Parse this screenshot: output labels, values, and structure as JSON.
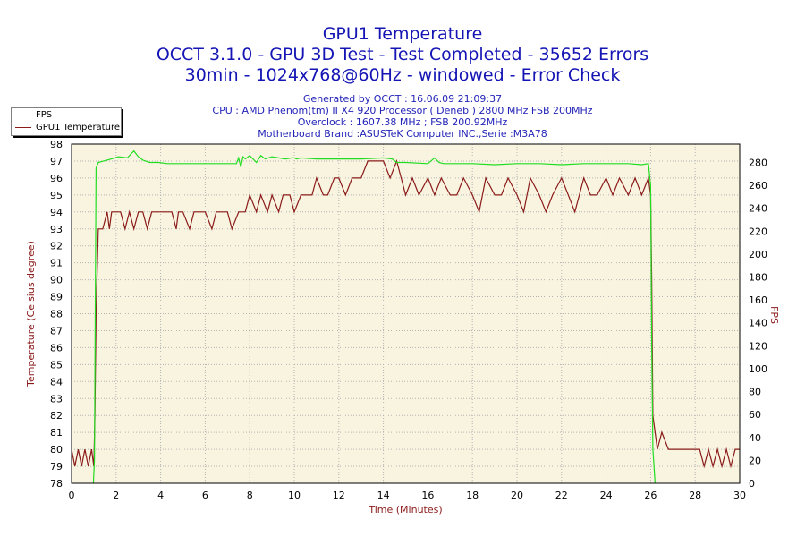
{
  "title_lines": [
    "GPU1 Temperature",
    "OCCT 3.1.0 - GPU 3D Test - Test Completed - 35652 Errors",
    "30min - 1024x768@60Hz - windowed - Error Check"
  ],
  "info_lines": [
    "Generated by OCCT : 16.06.09 21:09:37",
    "CPU : AMD Phenom(tm) II X4 920 Processor ( Deneb ) 2800 MHz FSB 200MHz",
    "Overclock : 1607.38 MHz ; FSB 200.92MHz",
    "Motherboard Brand :ASUSTeK Computer INC.,Serie :M3A78"
  ],
  "colors": {
    "background": "#ffffff",
    "plot_background": "#f8f4e0",
    "grid": "#b4b4b4",
    "title": "#1515b5",
    "axis_label": "#8b1a1a",
    "fps_line": "#22dd22",
    "temp_line": "#8b1a1a"
  },
  "chart_data": {
    "type": "line",
    "title": "GPU1 Temperature",
    "xlabel": "Time (Minutes)",
    "ylabel_left": "Temperature (Celsius degree)",
    "ylabel_right": "FPS",
    "xlim": [
      0,
      30
    ],
    "ylim_left": [
      78,
      98
    ],
    "ylim_right": [
      0,
      296
    ],
    "x_ticks": [
      "0",
      "2",
      "4",
      "6",
      "8",
      "10",
      "12",
      "14",
      "16",
      "18",
      "20",
      "22",
      "24",
      "26",
      "28",
      "30"
    ],
    "y_left_ticks": [
      "78",
      "79",
      "80",
      "81",
      "82",
      "83",
      "84",
      "85",
      "86",
      "87",
      "88",
      "89",
      "90",
      "91",
      "92",
      "93",
      "94",
      "95",
      "96",
      "97",
      "98"
    ],
    "y_right_ticks": [
      "0",
      "20",
      "40",
      "60",
      "80",
      "100",
      "120",
      "140",
      "160",
      "180",
      "200",
      "220",
      "240",
      "260",
      "280"
    ],
    "grid": true,
    "legend_position": "top-left",
    "series": [
      {
        "name": "FPS",
        "axis": "right",
        "color": "#22dd22",
        "x": [
          0.98,
          1.03,
          1.1,
          1.2,
          1.4,
          1.8,
          2.1,
          2.5,
          2.8,
          3.0,
          3.2,
          3.5,
          3.9,
          4.3,
          5.0,
          6.0,
          7.0,
          7.4,
          7.5,
          7.6,
          7.7,
          7.8,
          8.0,
          8.3,
          8.5,
          8.7,
          9.0,
          9.3,
          9.6,
          9.9,
          10.0,
          10.1,
          10.3,
          11.0,
          12.0,
          13.0,
          14.0,
          14.4,
          14.6,
          15.0,
          16.0,
          16.3,
          16.5,
          16.7,
          17.0,
          18.0,
          19.0,
          20.0,
          21.0,
          22.0,
          23.0,
          24.0,
          25.0,
          25.6,
          25.9,
          26.0,
          26.05,
          26.1,
          26.2
        ],
        "y": [
          0,
          20,
          275,
          280,
          281,
          283,
          285,
          284,
          290,
          285,
          282,
          280,
          280,
          279,
          279,
          279,
          279,
          279,
          284,
          276,
          285,
          283,
          286,
          280,
          286,
          283,
          285,
          284,
          283,
          284,
          284,
          283,
          284,
          283,
          283,
          283,
          284,
          283,
          280,
          280,
          279,
          284,
          280,
          279,
          279,
          279,
          278,
          279,
          279,
          278,
          279,
          279,
          279,
          278,
          279,
          260,
          120,
          30,
          0
        ]
      },
      {
        "name": "GPU1 Temperature",
        "axis": "left",
        "color": "#8b1a1a",
        "x": [
          0.0,
          0.15,
          0.3,
          0.45,
          0.6,
          0.75,
          0.9,
          1.0,
          1.05,
          1.1,
          1.2,
          1.4,
          1.6,
          1.7,
          1.8,
          2.0,
          2.2,
          2.4,
          2.6,
          2.8,
          3.0,
          3.2,
          3.4,
          3.6,
          3.8,
          4.0,
          4.5,
          4.7,
          4.8,
          5.0,
          5.3,
          5.5,
          5.8,
          6.0,
          6.3,
          6.5,
          6.8,
          7.0,
          7.2,
          7.5,
          7.8,
          8.0,
          8.3,
          8.5,
          8.8,
          9.0,
          9.3,
          9.5,
          9.8,
          10.0,
          10.3,
          10.5,
          10.8,
          11.0,
          11.3,
          11.5,
          11.8,
          12.0,
          12.3,
          12.6,
          13.0,
          13.3,
          13.6,
          14.0,
          14.3,
          14.6,
          14.8,
          15.0,
          15.3,
          15.6,
          16.0,
          16.3,
          16.6,
          17.0,
          17.3,
          17.6,
          18.0,
          18.3,
          18.6,
          19.0,
          19.3,
          19.6,
          20.0,
          20.3,
          20.6,
          21.0,
          21.3,
          21.6,
          22.0,
          22.3,
          22.6,
          23.0,
          23.3,
          23.6,
          24.0,
          24.3,
          24.6,
          25.0,
          25.3,
          25.6,
          25.9,
          26.0,
          26.05,
          26.1,
          26.3,
          26.5,
          26.8,
          27.0,
          27.5,
          28.0,
          28.2,
          28.4,
          28.6,
          28.8,
          29.0,
          29.2,
          29.4,
          29.6,
          29.8,
          30.0
        ],
        "y": [
          80,
          79,
          80,
          79,
          80,
          79,
          80,
          79,
          82,
          88,
          93,
          93,
          94,
          93,
          94,
          94,
          94,
          93,
          94,
          93,
          94,
          94,
          93,
          94,
          94,
          94,
          94,
          93,
          94,
          94,
          93,
          94,
          94,
          94,
          93,
          94,
          94,
          94,
          93,
          94,
          94,
          95,
          94,
          95,
          94,
          95,
          94,
          95,
          95,
          94,
          95,
          95,
          95,
          96,
          95,
          95,
          96,
          96,
          95,
          96,
          96,
          97,
          97,
          97,
          96,
          97,
          96,
          95,
          96,
          95,
          96,
          95,
          96,
          95,
          95,
          96,
          95,
          94,
          96,
          95,
          95,
          96,
          95,
          94,
          96,
          95,
          94,
          95,
          96,
          95,
          94,
          96,
          95,
          95,
          96,
          95,
          96,
          95,
          96,
          95,
          96,
          95,
          90,
          82,
          80,
          81,
          80,
          80,
          80,
          80,
          80,
          79,
          80,
          79,
          80,
          79,
          80,
          79,
          80,
          80
        ]
      }
    ]
  }
}
